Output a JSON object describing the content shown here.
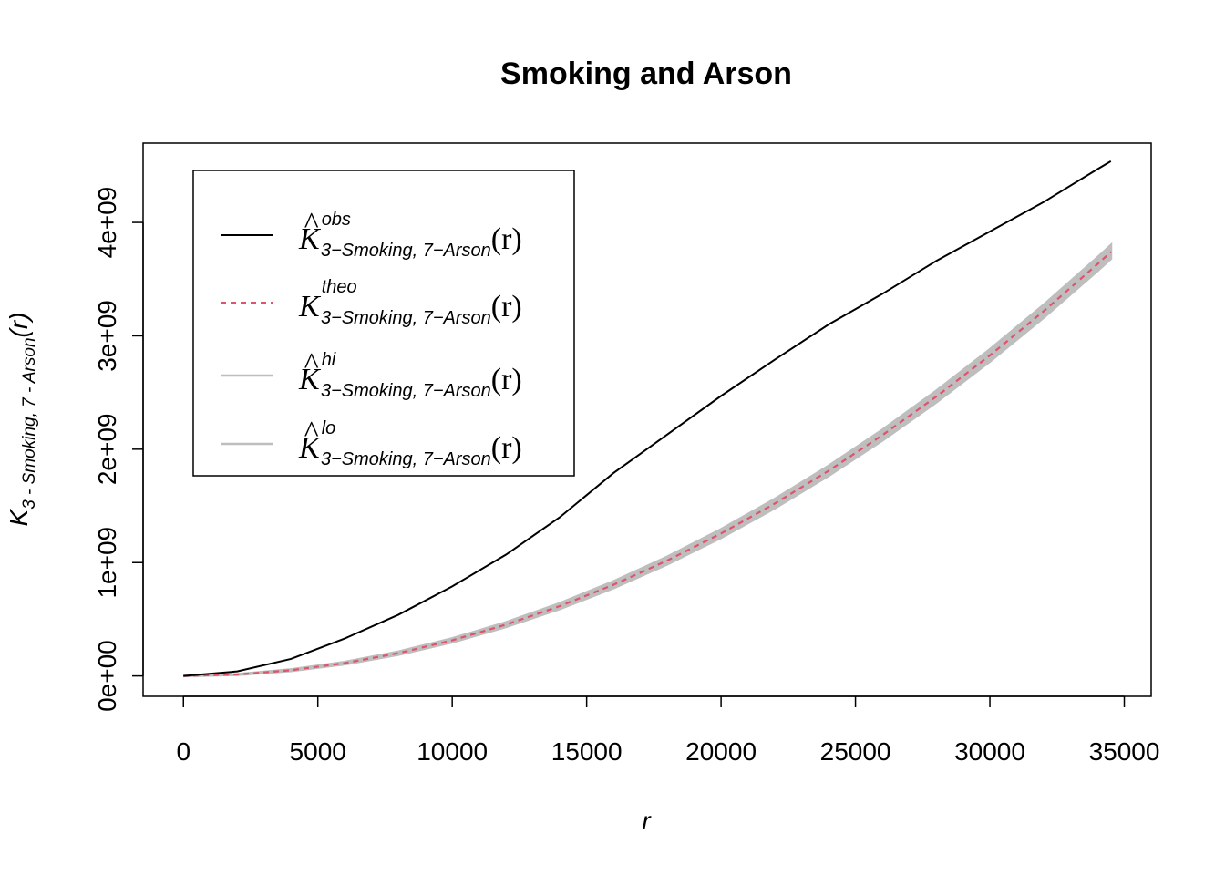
{
  "chart_data": {
    "type": "line",
    "title": "Smoking and Arson",
    "xlabel": "r",
    "ylabel": {
      "symbol": "K",
      "subscript": "3 -  Smoking, 7 -  Arson",
      "argument": "(r)"
    },
    "xlim": [
      -1500,
      36000
    ],
    "ylim": [
      -180000000,
      4700000000
    ],
    "x_ticks": [
      0,
      5000,
      10000,
      15000,
      20000,
      25000,
      30000,
      35000
    ],
    "x_tick_labels": [
      "0",
      "5000",
      "10000",
      "15000",
      "20000",
      "25000",
      "30000",
      "35000"
    ],
    "y_ticks": [
      0,
      1000000000,
      2000000000,
      3000000000,
      4000000000
    ],
    "y_tick_labels": [
      "0e+00",
      "1e+09",
      "2e+09",
      "3e+09",
      "4e+09"
    ],
    "grid": false,
    "legend_position": "top-left",
    "x": [
      0,
      2000,
      4000,
      6000,
      8000,
      10000,
      12000,
      14000,
      16000,
      18000,
      20000,
      22000,
      24000,
      26000,
      28000,
      30000,
      32000,
      34000,
      34500
    ],
    "series": [
      {
        "name": "obs",
        "style": "solid",
        "color": "#000000",
        "values": [
          0,
          40000000,
          150000000,
          330000000,
          540000000,
          790000000,
          1070000000,
          1400000000,
          1790000000,
          2130000000,
          2470000000,
          2790000000,
          3100000000,
          3370000000,
          3660000000,
          3920000000,
          4180000000,
          4470000000,
          4540000000
        ]
      },
      {
        "name": "theo",
        "style": "dashed",
        "color": "#DF536B",
        "values": [
          0,
          12600000,
          50300000,
          113100000,
          201100000,
          314200000,
          452400000,
          615800000,
          804200000,
          1017900000,
          1256600000,
          1520500000,
          1809600000,
          2123700000,
          2463000000,
          2827400000,
          3217000000,
          3631700000,
          3739300000
        ]
      },
      {
        "name": "hi",
        "style": "band-upper",
        "color": "#BEBEBE",
        "values": [
          0,
          14000000,
          56000000,
          122000000,
          213000000,
          330000000,
          472000000,
          640000000,
          833000000,
          1050000000,
          1293000000,
          1560000000,
          1852000000,
          2170000000,
          2513000000,
          2880000000,
          3272000000,
          3690000000,
          3798000000
        ]
      },
      {
        "name": "lo",
        "style": "band-lower",
        "color": "#BEBEBE",
        "values": [
          0,
          11000000,
          45000000,
          104000000,
          189000000,
          298000000,
          433000000,
          592000000,
          776000000,
          986000000,
          1220000000,
          1481000000,
          1767000000,
          2078000000,
          2413000000,
          2775000000,
          3162000000,
          3573000000,
          3680000000
        ]
      }
    ],
    "legend": [
      {
        "key": "obs",
        "symbol": "K",
        "hat": "^",
        "superscript": "obs",
        "subscript": "3−Smoking, 7−Arson",
        "argument": "(r)",
        "style": "solid",
        "color": "#000000"
      },
      {
        "key": "theo",
        "symbol": "K",
        "hat": "",
        "superscript": "theo",
        "subscript": "3−Smoking, 7−Arson",
        "argument": "(r)",
        "style": "dashed",
        "color": "#DF536B"
      },
      {
        "key": "hi",
        "symbol": "K",
        "hat": "^",
        "superscript": "hi",
        "subscript": "3−Smoking, 7−Arson",
        "argument": "(r)",
        "style": "band",
        "color": "#BEBEBE"
      },
      {
        "key": "lo",
        "symbol": "K",
        "hat": "^",
        "superscript": "lo",
        "subscript": "3−Smoking, 7−Arson",
        "argument": "(r)",
        "style": "band",
        "color": "#BEBEBE"
      }
    ]
  }
}
